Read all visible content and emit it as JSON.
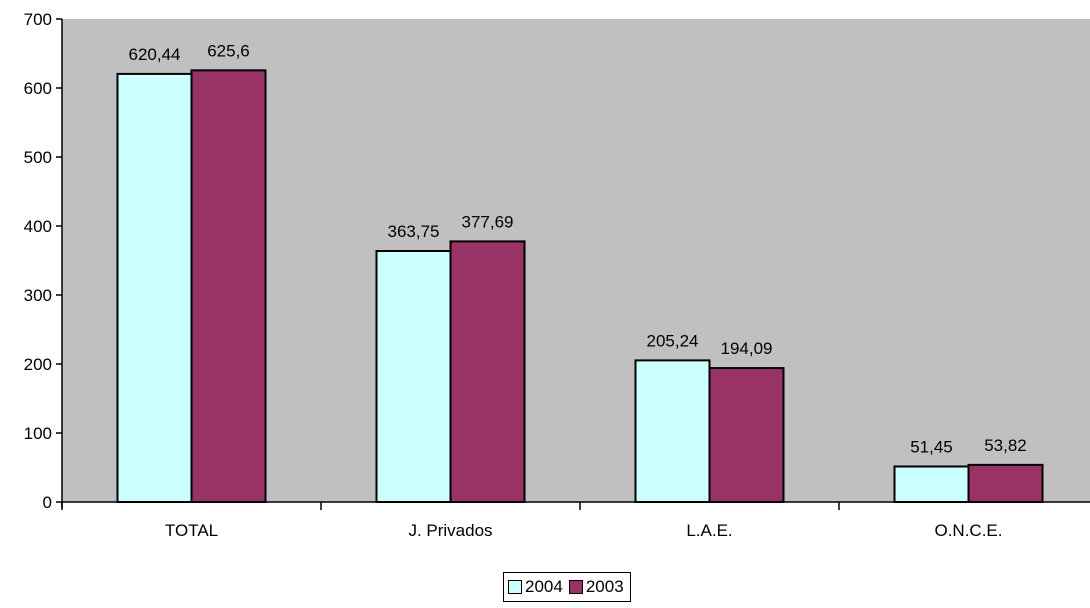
{
  "chart_data": {
    "type": "bar",
    "categories": [
      "TOTAL",
      "J. Privados",
      "L.A.E.",
      "O.N.C.E."
    ],
    "series": [
      {
        "name": "2004",
        "values": [
          620.44,
          363.75,
          205.24,
          51.45
        ],
        "labels": [
          "620,44",
          "363,75",
          "205,24",
          "51,45"
        ],
        "color": "#CCFFFF"
      },
      {
        "name": "2003",
        "values": [
          625.6,
          377.69,
          194.09,
          53.82
        ],
        "labels": [
          "625,6",
          "377,69",
          "194,09",
          "53,82"
        ],
        "color": "#993366"
      }
    ],
    "ylim": [
      0,
      700
    ],
    "yticks": [
      0,
      100,
      200,
      300,
      400,
      500,
      600,
      700
    ],
    "plot_background": "#C0C0C0",
    "grid": false,
    "legend_position": "bottom"
  }
}
